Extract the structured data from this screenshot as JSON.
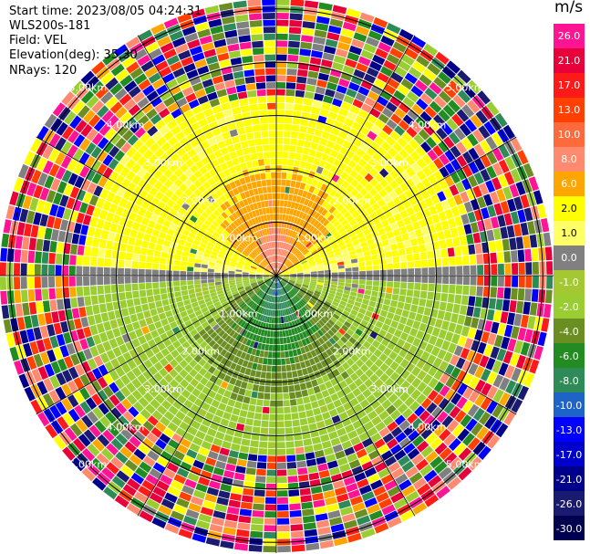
{
  "info": {
    "start_time": "Start time: 2023/08/05 04:24:31",
    "instrument": "WLS200s-181",
    "field": "Field: VEL",
    "elevation": "Elevation(deg): 35.30",
    "nrays": "NRays: 120"
  },
  "colorbar": {
    "unit": "m/s",
    "levels": [
      {
        "label": "26.0",
        "color": "#ff1493",
        "text_color": "#ffffff"
      },
      {
        "label": "21.0",
        "color": "#e8003a",
        "text_color": "#ffffff"
      },
      {
        "label": "17.0",
        "color": "#ff1a1a",
        "text_color": "#ffffff"
      },
      {
        "label": "13.0",
        "color": "#ff4000",
        "text_color": "#ffffff"
      },
      {
        "label": "10.0",
        "color": "#ff6a3d",
        "text_color": "#ffffff"
      },
      {
        "label": "8.0",
        "color": "#ff8a70",
        "text_color": "#ffffff"
      },
      {
        "label": "6.0",
        "color": "#ffa500",
        "text_color": "#ffffff"
      },
      {
        "label": "2.0",
        "color": "#ffff00",
        "text_color": "#000000"
      },
      {
        "label": "1.0",
        "color": "#ffff66",
        "text_color": "#000000"
      },
      {
        "label": "0.0",
        "color": "#808080",
        "text_color": "#ffffff"
      },
      {
        "label": "-1.0",
        "color": "#a4c832",
        "text_color": "#ffffff"
      },
      {
        "label": "-2.0",
        "color": "#9acd32",
        "text_color": "#ffffff"
      },
      {
        "label": "-4.0",
        "color": "#6b8e23",
        "text_color": "#ffffff"
      },
      {
        "label": "-6.0",
        "color": "#228b22",
        "text_color": "#ffffff"
      },
      {
        "label": "-8.0",
        "color": "#2e8b57",
        "text_color": "#ffffff"
      },
      {
        "label": "-10.0",
        "color": "#1e64c8",
        "text_color": "#ffffff"
      },
      {
        "label": "-13.0",
        "color": "#0000ff",
        "text_color": "#ffffff"
      },
      {
        "label": "-17.0",
        "color": "#0000cd",
        "text_color": "#ffffff"
      },
      {
        "label": "-21.0",
        "color": "#00008b",
        "text_color": "#ffffff"
      },
      {
        "label": "-26.0",
        "color": "#1a1a70",
        "text_color": "#ffffff"
      },
      {
        "label": "-30.0",
        "color": "#000050",
        "text_color": "#ffffff"
      }
    ]
  },
  "chart_data": {
    "type": "heatmap",
    "projection": "polar PPI",
    "field": "VEL",
    "units": "m/s",
    "elevation_deg": 35.3,
    "nrays": 120,
    "range_rings_km": [
      1.0,
      2.0,
      3.0,
      4.0,
      5.0
    ],
    "ring_labels": [
      "1.00km",
      "2.00km",
      "3.00km",
      "4.00km",
      "5.00km"
    ],
    "spokes_deg": [
      0,
      30,
      60,
      90,
      120,
      150,
      180,
      210,
      240,
      270,
      300,
      330
    ],
    "max_range_km": 5.2,
    "regions": [
      {
        "description": "north sector near center",
        "approx_value": 8.0
      },
      {
        "description": "north sector mid range",
        "approx_value": 6.0
      },
      {
        "description": "north sector outer",
        "approx_value": 2.0
      },
      {
        "description": "east-west axis",
        "approx_value": 0.0
      },
      {
        "description": "south sector near center",
        "approx_value": -8.0
      },
      {
        "description": "south sector mid range",
        "approx_value": -6.0
      },
      {
        "description": "south sector outer",
        "approx_value": -2.0
      },
      {
        "description": "beyond ~3.5 km",
        "approx_value": "noise (mixed)"
      }
    ],
    "grid": true
  }
}
